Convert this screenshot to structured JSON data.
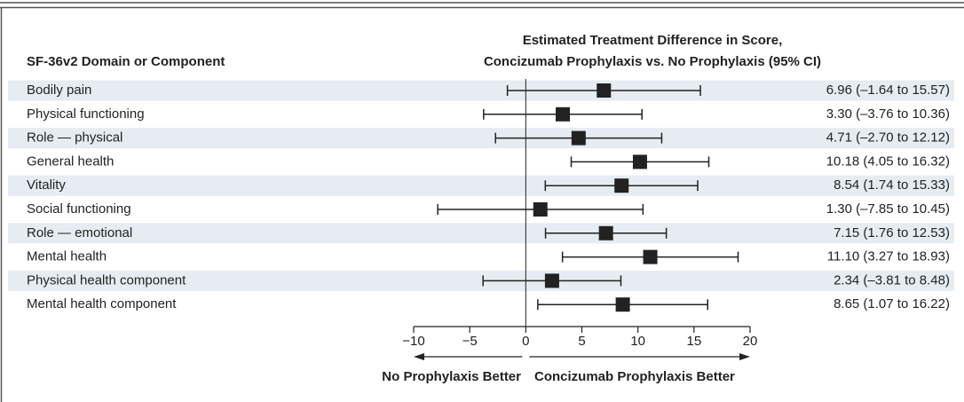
{
  "chart_data": {
    "type": "forest",
    "column_header": "SF-36v2 Domain or Component",
    "title": [
      "Estimated Treatment Difference in Score,",
      "Concizumab Prophylaxis vs. No Prophylaxis (95% CI)"
    ],
    "categories": [
      "Bodily pain",
      "Physical functioning",
      "Role — physical",
      "General health",
      "Vitality",
      "Social functioning",
      "Role — emotional",
      "Mental health",
      "Physical health component",
      "Mental health component"
    ],
    "values": [
      6.96,
      3.3,
      4.71,
      10.18,
      8.54,
      1.3,
      7.15,
      11.1,
      2.34,
      8.65
    ],
    "lower": [
      -1.64,
      -3.76,
      -2.7,
      4.05,
      1.74,
      -7.85,
      1.76,
      3.27,
      -3.81,
      1.07
    ],
    "upper": [
      15.57,
      10.36,
      12.12,
      16.32,
      15.33,
      10.45,
      12.53,
      18.93,
      8.48,
      16.22
    ],
    "value_labels": [
      "6.96 (–1.64 to 15.57)",
      "3.30 (–3.76 to 10.36)",
      "4.71 (–2.70 to 12.12)",
      "10.18 (4.05 to 16.32)",
      "8.54 (1.74 to 15.33)",
      "1.30 (–7.85 to 10.45)",
      "7.15 (1.76 to 12.53)",
      "11.10 (3.27 to 18.93)",
      "2.34 (–3.81 to 8.48)",
      "8.65 (1.07 to 16.22)"
    ],
    "xlim": [
      -10,
      20
    ],
    "xticks": [
      {
        "value": -10,
        "label": "−10"
      },
      {
        "value": -5,
        "label": "−5"
      },
      0,
      5,
      10,
      15,
      20
    ],
    "left_label": "No Prophylaxis Better",
    "right_label": "Concizumab Prophylaxis Better",
    "color": "#222222",
    "row_shading": "#e6ecf1"
  }
}
